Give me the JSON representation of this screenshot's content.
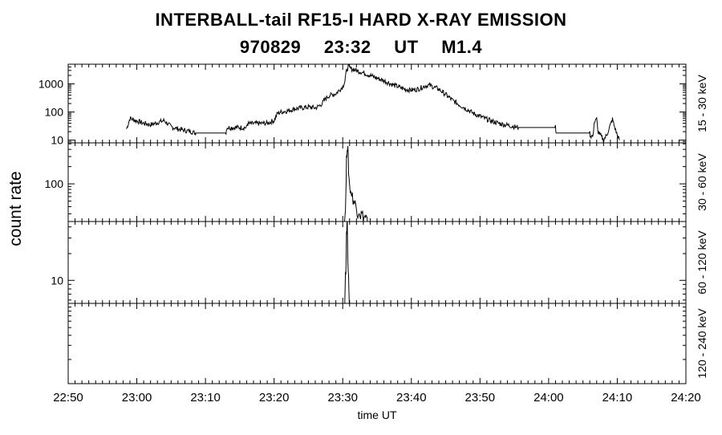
{
  "title": {
    "line1": "INTERBALL-tail  RF15-I  HARD  X-RAY  EMISSION",
    "line2": "970829   23:32 UT   M1.4"
  },
  "chart_data": {
    "type": "line",
    "xlabel": "time UT",
    "ylabel": "count rate",
    "x_range_minutes": [
      0,
      90
    ],
    "x_ticks": [
      {
        "m": 0,
        "label": "22:50"
      },
      {
        "m": 10,
        "label": "23:00"
      },
      {
        "m": 20,
        "label": "23:10"
      },
      {
        "m": 30,
        "label": "23:20"
      },
      {
        "m": 40,
        "label": "23:30"
      },
      {
        "m": 50,
        "label": "23:40"
      },
      {
        "m": 60,
        "label": "23:50"
      },
      {
        "m": 70,
        "label": "24:00"
      },
      {
        "m": 80,
        "label": "24:10"
      },
      {
        "m": 90,
        "label": "24:20"
      }
    ],
    "panels": [
      {
        "band": "15 - 30 keV",
        "scale": "log",
        "ylim": [
          8,
          5000
        ],
        "y_ticks": [
          {
            "v": 10,
            "label": "10"
          },
          {
            "v": 100,
            "label": "100"
          },
          {
            "v": 1000,
            "label": "1000"
          }
        ],
        "series": [
          [
            8.5,
            25
          ],
          [
            9.0,
            60
          ],
          [
            10,
            48
          ],
          [
            11,
            40
          ],
          [
            12,
            35
          ],
          [
            13,
            42
          ],
          [
            14,
            50
          ],
          [
            14.5,
            38
          ],
          [
            15,
            30
          ],
          [
            16,
            25
          ],
          [
            17,
            22
          ],
          [
            18,
            20
          ],
          [
            18.5,
            18
          ],
          [
            18.6,
            18
          ],
          [
            23,
            18
          ],
          [
            23.1,
            28
          ],
          [
            26,
            28
          ],
          [
            26.1,
            38
          ],
          [
            29,
            40
          ],
          [
            30,
            50
          ],
          [
            30.5,
            90
          ],
          [
            31,
            100
          ],
          [
            32,
            110
          ],
          [
            33,
            130
          ],
          [
            34,
            140
          ],
          [
            35,
            150
          ],
          [
            36,
            140
          ],
          [
            36.5,
            160
          ],
          [
            37,
            200
          ],
          [
            37.5,
            300
          ],
          [
            38,
            380
          ],
          [
            39,
            450
          ],
          [
            39.5,
            600
          ],
          [
            40,
            800
          ],
          [
            40.3,
            1200
          ],
          [
            40.5,
            2500
          ],
          [
            40.8,
            4200
          ],
          [
            41,
            3600
          ],
          [
            42,
            3000
          ],
          [
            43,
            2500
          ],
          [
            44,
            2000
          ],
          [
            45,
            1600
          ],
          [
            46,
            1300
          ],
          [
            47,
            1000
          ],
          [
            48,
            800
          ],
          [
            49,
            650
          ],
          [
            50,
            600
          ],
          [
            51,
            650
          ],
          [
            52,
            850
          ],
          [
            52.5,
            900
          ],
          [
            53,
            820
          ],
          [
            54,
            650
          ],
          [
            55,
            420
          ],
          [
            56,
            260
          ],
          [
            57,
            180
          ],
          [
            58,
            130
          ],
          [
            59,
            90
          ],
          [
            60,
            70
          ],
          [
            61,
            55
          ],
          [
            62,
            45
          ],
          [
            63,
            38
          ],
          [
            64,
            34
          ],
          [
            65,
            30
          ],
          [
            65.5,
            28
          ],
          [
            65.6,
            28
          ],
          [
            71,
            28
          ],
          [
            71.1,
            18
          ],
          [
            76,
            18
          ],
          [
            76.1,
            14
          ],
          [
            76.5,
            14
          ],
          [
            76.6,
            40
          ],
          [
            77,
            55
          ],
          [
            77.2,
            20
          ],
          [
            78,
            10
          ],
          [
            78.5,
            16
          ],
          [
            79,
            35
          ],
          [
            79.3,
            55
          ],
          [
            79.6,
            30
          ],
          [
            80,
            15
          ],
          [
            80.3,
            10
          ]
        ]
      },
      {
        "band": "30 - 60 keV",
        "scale": "log",
        "ylim": [
          22,
          520
        ],
        "y_ticks": [
          {
            "v": 100,
            "label": "100"
          }
        ],
        "series": [
          [
            40.25,
            22
          ],
          [
            40.35,
            30
          ],
          [
            40.45,
            60
          ],
          [
            40.55,
            250
          ],
          [
            40.65,
            500
          ],
          [
            40.75,
            380
          ],
          [
            40.85,
            180
          ],
          [
            41,
            90
          ],
          [
            41.2,
            75
          ],
          [
            41.4,
            60
          ],
          [
            41.6,
            50
          ],
          [
            41.8,
            45
          ],
          [
            42,
            38
          ],
          [
            42.2,
            32
          ],
          [
            42.4,
            35
          ],
          [
            42.6,
            28
          ],
          [
            42.8,
            30
          ],
          [
            43,
            25
          ],
          [
            43.3,
            27
          ],
          [
            43.6,
            22
          ]
        ]
      },
      {
        "band": "60 - 120 keV",
        "scale": "log",
        "ylim": [
          5.5,
          46
        ],
        "y_ticks": [
          {
            "v": 10,
            "label": "10"
          }
        ],
        "series": [
          [
            40.25,
            5.5
          ],
          [
            40.35,
            7
          ],
          [
            40.45,
            15
          ],
          [
            40.55,
            30
          ],
          [
            40.62,
            45
          ],
          [
            40.7,
            30
          ],
          [
            40.8,
            12
          ],
          [
            40.9,
            7
          ],
          [
            41.0,
            5.5
          ]
        ]
      },
      {
        "band": "120 - 240 keV",
        "scale": "log",
        "ylim": [
          1,
          10
        ],
        "y_ticks": [],
        "series": []
      }
    ]
  }
}
